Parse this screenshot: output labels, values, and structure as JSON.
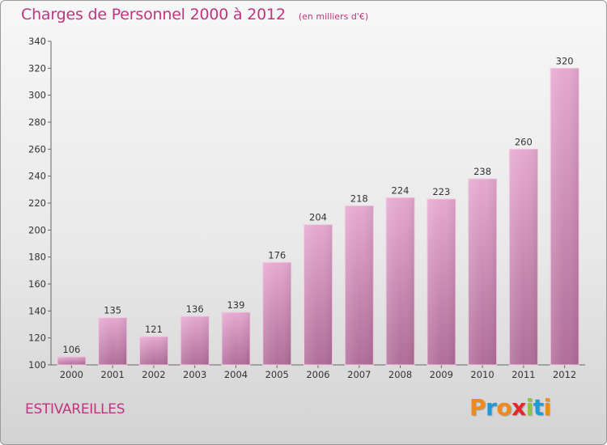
{
  "chart_data": {
    "type": "bar",
    "title": "Charges de Personnel 2000 à 2012",
    "subtitle": "(en milliers d'€)",
    "categories": [
      "2000",
      "2001",
      "2002",
      "2003",
      "2004",
      "2005",
      "2006",
      "2007",
      "2008",
      "2009",
      "2010",
      "2011",
      "2012"
    ],
    "values": [
      106,
      135,
      121,
      136,
      139,
      176,
      204,
      218,
      224,
      223,
      238,
      260,
      320
    ],
    "ylim": [
      100,
      340
    ],
    "yticks": [
      100,
      120,
      140,
      160,
      180,
      200,
      220,
      240,
      260,
      280,
      300,
      320,
      340
    ],
    "grid": false,
    "data_labels": true,
    "bar_color": "#d98bb8"
  },
  "footer": {
    "place": "ESTIVAREILLES",
    "logo": {
      "letters": [
        "P",
        "r",
        "o",
        "x",
        "i",
        "t",
        "i"
      ],
      "colors": [
        "#f08a1c",
        "#1f9ad6",
        "#f08a1c",
        "#e8262a",
        "#8dc63f",
        "#1f9ad6",
        "#f08a1c"
      ]
    }
  }
}
